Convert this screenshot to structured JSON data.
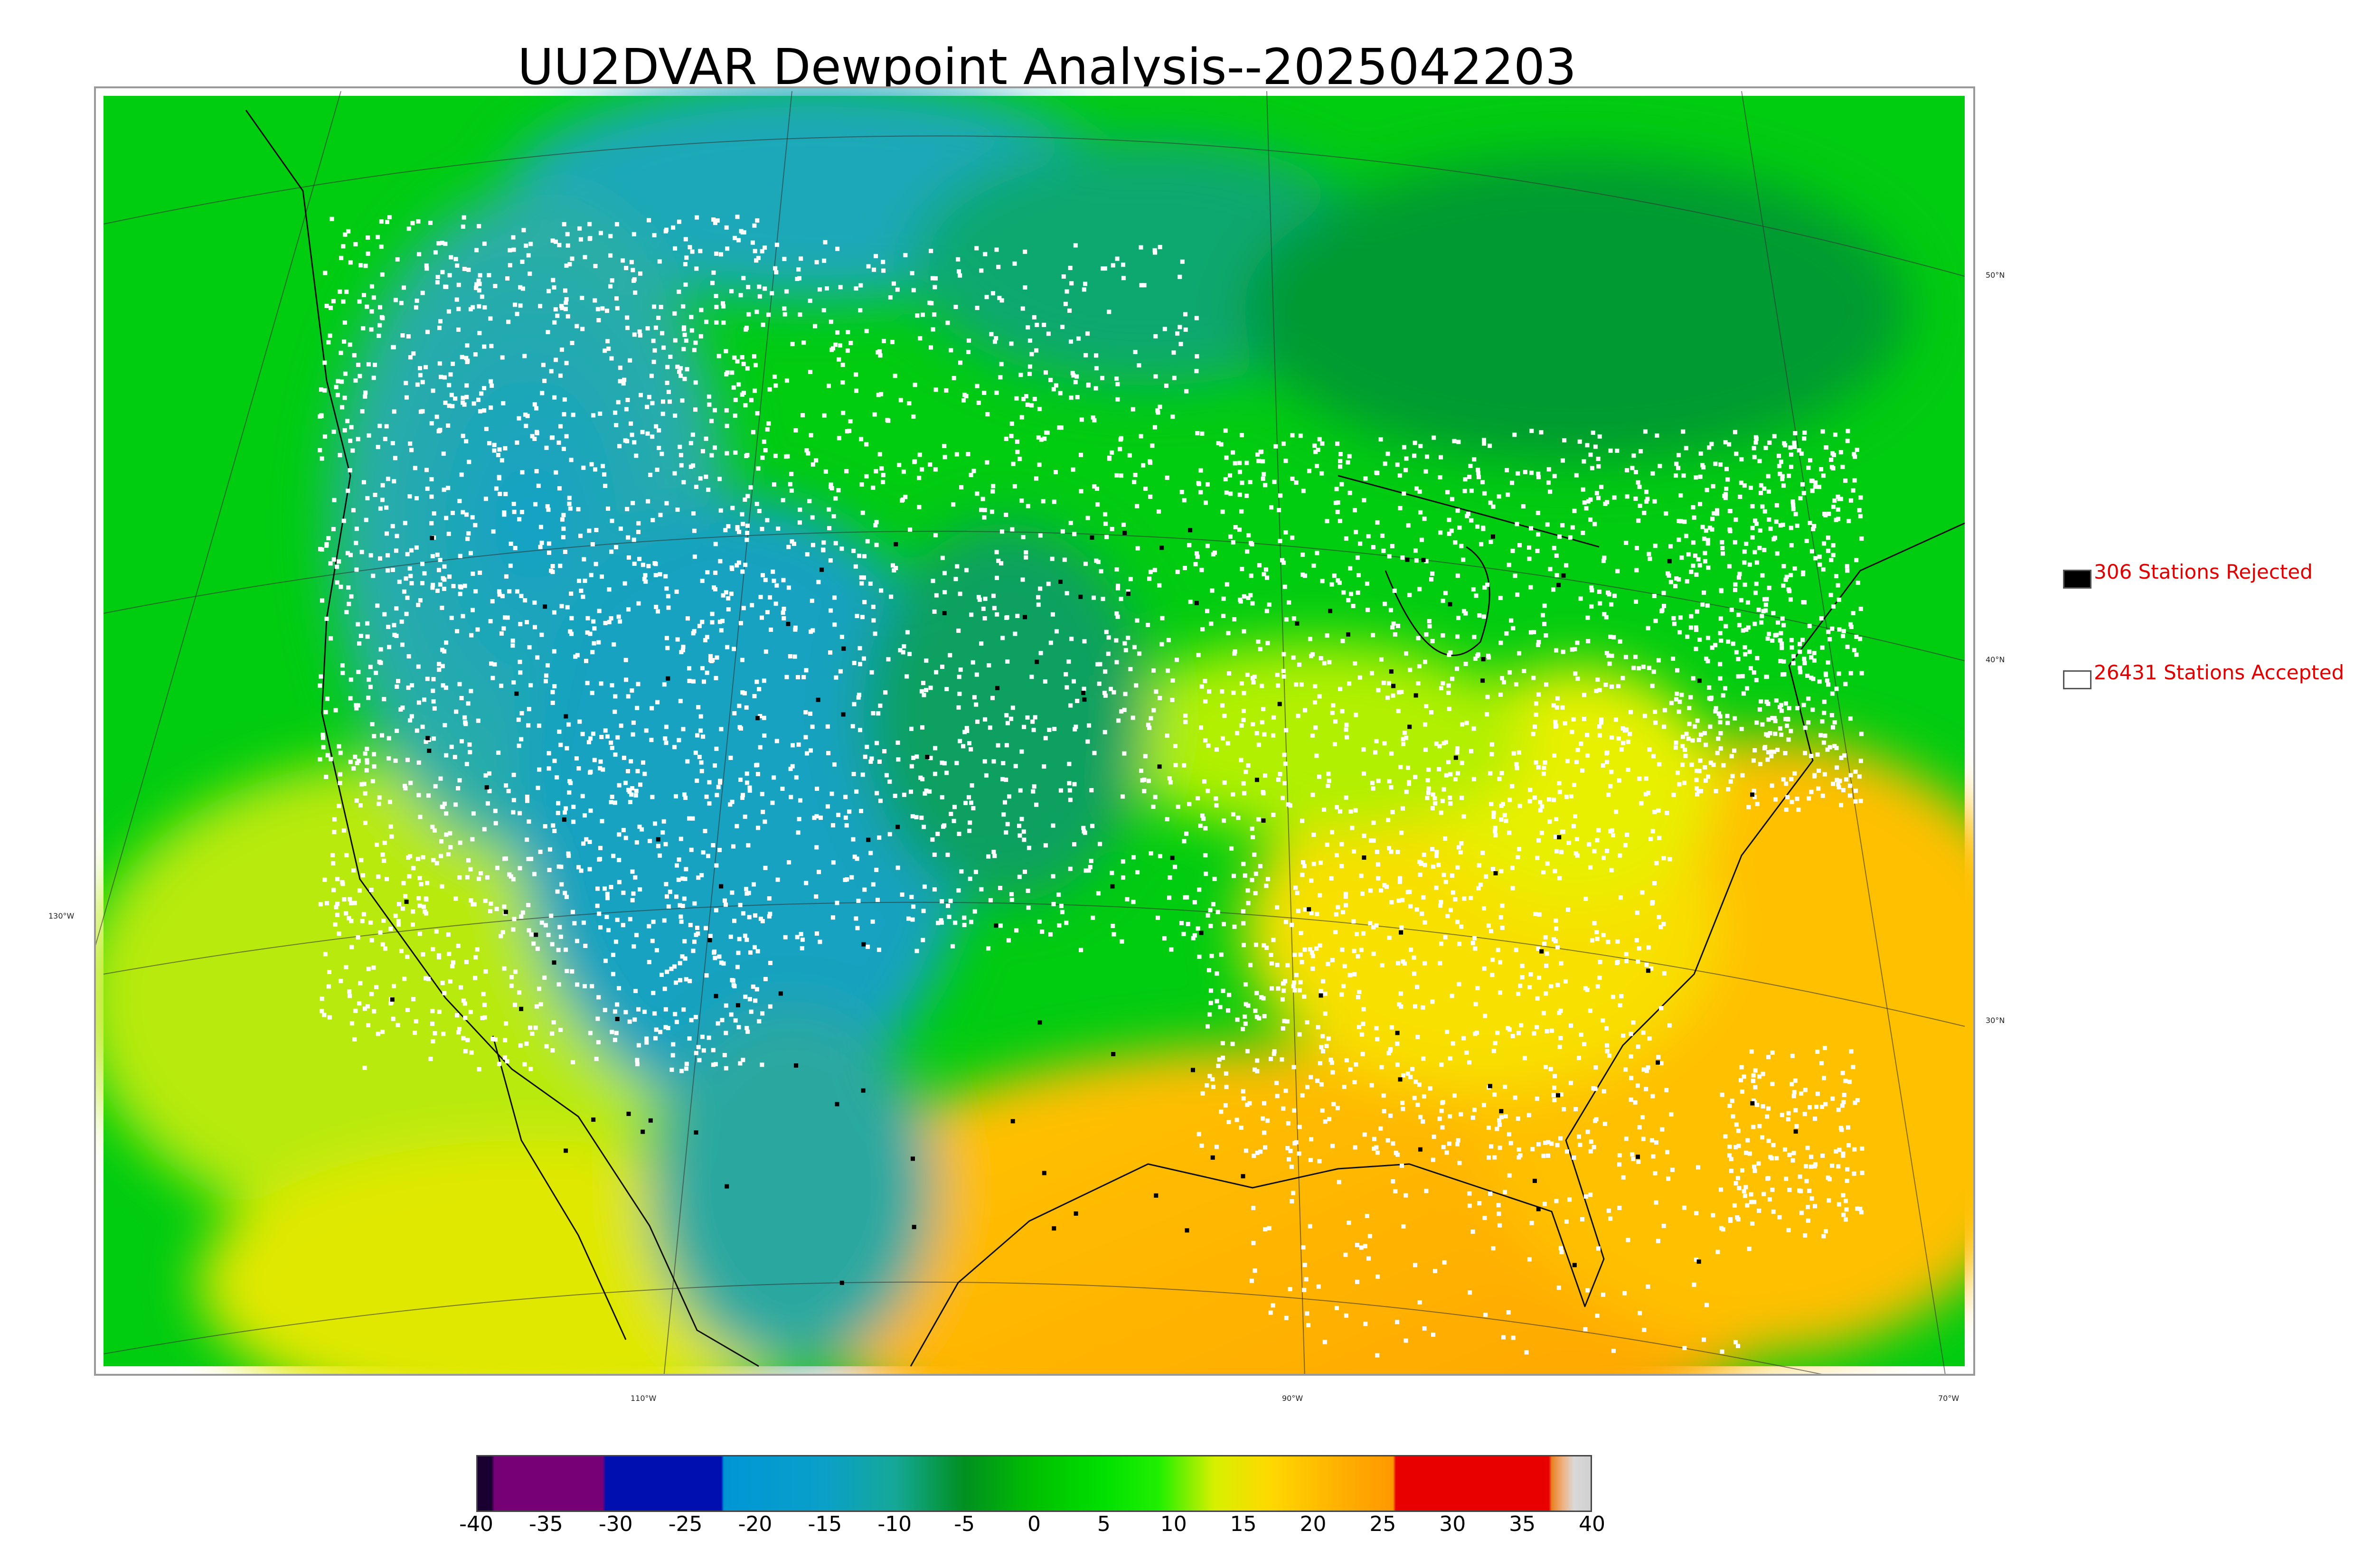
{
  "title": "UU2DVAR Dewpoint Analysis--2025042203",
  "map": {
    "lat_labels": [
      "50°N",
      "40°N",
      "30°N"
    ],
    "lon_labels": [
      "130°W",
      "110°W",
      "90°W",
      "70°W"
    ]
  },
  "legend": {
    "rejected": {
      "count_label": "306 Stations Rejected",
      "color": "#000000"
    },
    "accepted": {
      "count_label": "26431 Stations Accepted",
      "color": "#ffffff"
    }
  },
  "colorbar": {
    "ticks": [
      "-40",
      "-35",
      "-30",
      "-25",
      "-20",
      "-15",
      "-10",
      "-5",
      "0",
      "5",
      "10",
      "15",
      "20",
      "25",
      "30",
      "35",
      "40"
    ],
    "range": [
      -40,
      40
    ],
    "stops": [
      {
        "v": -40,
        "c": "#1a0030"
      },
      {
        "v": -39,
        "c": "#1a0030"
      },
      {
        "v": -38.8,
        "c": "#760076"
      },
      {
        "v": -31,
        "c": "#760076"
      },
      {
        "v": -30.8,
        "c": "#0010b0"
      },
      {
        "v": -22.5,
        "c": "#0010b0"
      },
      {
        "v": -22.3,
        "c": "#0096d6"
      },
      {
        "v": -15,
        "c": "#0aa0c8"
      },
      {
        "v": -10,
        "c": "#15a898"
      },
      {
        "v": -5,
        "c": "#009020"
      },
      {
        "v": 0,
        "c": "#00c000"
      },
      {
        "v": 5,
        "c": "#00e000"
      },
      {
        "v": 9,
        "c": "#20f000"
      },
      {
        "v": 13,
        "c": "#d8f000"
      },
      {
        "v": 17,
        "c": "#ffd800"
      },
      {
        "v": 22,
        "c": "#ffb000"
      },
      {
        "v": 25.8,
        "c": "#ff9800"
      },
      {
        "v": 26,
        "c": "#e80000"
      },
      {
        "v": 37,
        "c": "#e80000"
      },
      {
        "v": 37.2,
        "c": "#e88020"
      },
      {
        "v": 38,
        "c": "#f0b080"
      },
      {
        "v": 38.8,
        "c": "#d8d8d8"
      },
      {
        "v": 40,
        "c": "#d0d0d0"
      }
    ]
  }
}
